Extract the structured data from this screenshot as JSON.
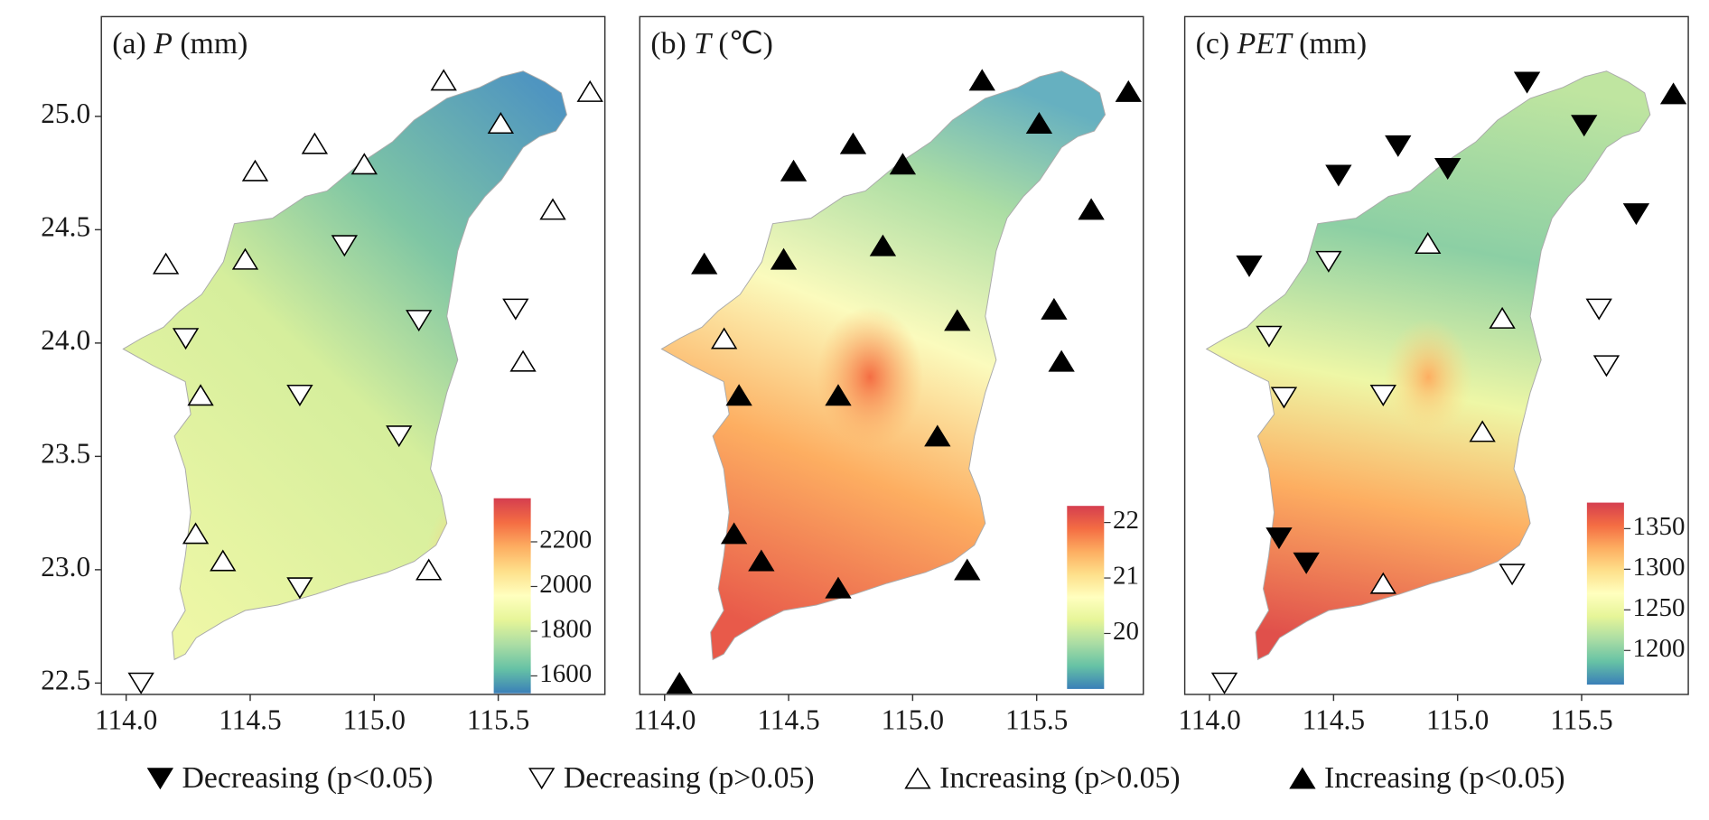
{
  "chart_data": [
    {
      "type": "scatter",
      "title": {
        "prefix": "(a)",
        "variable": "P",
        "unit": "(mm)"
      },
      "xlim": [
        113.9,
        115.93
      ],
      "ylim": [
        22.45,
        25.44
      ],
      "xticks": [
        {
          "value": 114,
          "label": "114.0"
        },
        114.5,
        {
          "value": 115,
          "label": "115.0"
        },
        115.5
      ],
      "yticks": [
        22.5,
        {
          "value": 23,
          "label": "23.0"
        },
        23.5,
        {
          "value": 24,
          "label": "24.0"
        },
        24.5,
        {
          "value": 25,
          "label": "25.0"
        }
      ],
      "colorbar": {
        "lim": [
          1522,
          2395
        ],
        "ticks": [
          1600,
          1800,
          2000,
          2200
        ]
      },
      "field": "precip",
      "series": [
        {
          "marker": "up-open",
          "x": [
            115.28,
            115.87,
            115.51,
            114.76,
            114.52,
            114.96,
            115.72,
            114.16,
            114.48,
            115.6,
            114.3,
            114.28,
            114.39,
            115.22
          ],
          "y": [
            25.16,
            25.11,
            24.97,
            24.88,
            24.76,
            24.79,
            24.59,
            24.35,
            24.37,
            23.92,
            23.77,
            23.16,
            23.04,
            23.0
          ]
        },
        {
          "marker": "down-open",
          "x": [
            114.88,
            114.24,
            115.18,
            115.57,
            114.7,
            115.1,
            114.7,
            114.06
          ],
          "y": [
            24.43,
            24.02,
            24.1,
            24.15,
            23.77,
            23.59,
            22.92,
            22.5
          ]
        }
      ]
    },
    {
      "type": "scatter",
      "title": {
        "prefix": "(b)",
        "variable": "T",
        "unit": "(℃)"
      },
      "xlim": [
        113.9,
        115.93
      ],
      "ylim": [
        22.45,
        25.44
      ],
      "xticks": [
        {
          "value": 114,
          "label": "114.0"
        },
        114.5,
        {
          "value": 115,
          "label": "115.0"
        },
        115.5
      ],
      "colorbar": {
        "lim": [
          19.0,
          22.3
        ],
        "ticks": [
          20,
          21,
          22
        ]
      },
      "field": "temp",
      "series": [
        {
          "marker": "up-filled",
          "x": [
            115.28,
            115.87,
            115.51,
            114.76,
            114.52,
            114.96,
            115.72,
            114.16,
            114.48,
            114.88,
            115.18,
            115.57,
            115.6,
            114.3,
            114.7,
            115.1,
            114.28,
            114.39,
            114.7,
            115.22,
            114.06
          ],
          "y": [
            25.16,
            25.11,
            24.97,
            24.88,
            24.76,
            24.79,
            24.59,
            24.35,
            24.37,
            24.43,
            24.1,
            24.15,
            23.92,
            23.77,
            23.77,
            23.59,
            23.16,
            23.04,
            22.92,
            23.0,
            22.5
          ]
        },
        {
          "marker": "up-open",
          "x": [
            114.24
          ],
          "y": [
            24.02
          ]
        }
      ]
    },
    {
      "type": "scatter",
      "title": {
        "prefix": "(c)",
        "variable": "PET",
        "unit": "(mm)"
      },
      "xlim": [
        113.9,
        115.93
      ],
      "ylim": [
        22.45,
        25.44
      ],
      "xticks": [
        {
          "value": 114,
          "label": "114.0"
        },
        114.5,
        {
          "value": 115,
          "label": "115.0"
        },
        115.5
      ],
      "colorbar": {
        "lim": [
          1158,
          1382
        ],
        "ticks": [
          1200,
          1250,
          1300,
          1350
        ]
      },
      "field": "pet",
      "series": [
        {
          "marker": "down-filled",
          "x": [
            115.28,
            115.51,
            114.76,
            114.52,
            114.96,
            115.72,
            114.16,
            114.28,
            114.39
          ],
          "y": [
            25.15,
            24.96,
            24.87,
            24.74,
            24.77,
            24.57,
            24.34,
            23.14,
            23.03
          ]
        },
        {
          "marker": "up-filled",
          "x": [
            115.87
          ],
          "y": [
            25.1
          ]
        },
        {
          "marker": "down-open",
          "x": [
            114.48,
            114.24,
            115.57,
            115.6,
            114.3,
            114.7,
            115.22,
            114.06
          ],
          "y": [
            24.36,
            24.03,
            24.15,
            23.9,
            23.76,
            23.77,
            22.98,
            22.5
          ]
        },
        {
          "marker": "up-open",
          "x": [
            114.88,
            115.18,
            115.1,
            114.7
          ],
          "y": [
            24.44,
            24.11,
            23.61,
            22.94
          ]
        }
      ]
    }
  ],
  "legend": {
    "entries": [
      {
        "label": "Decreasing (p<0.05)",
        "marker": "down-filled"
      },
      {
        "label": "Decreasing (p>0.05)",
        "marker": "down-open"
      },
      {
        "label": "Increasing (p>0.05)",
        "marker": "up-open"
      },
      {
        "label": "Increasing (p<0.05)",
        "marker": "up-filled"
      }
    ]
  },
  "colormap": [
    "#3a7fb8",
    "#66c2a5",
    "#abdda4",
    "#e6f598",
    "#ffffbf",
    "#fee08b",
    "#fdae61",
    "#f46d43",
    "#d53e4f"
  ]
}
